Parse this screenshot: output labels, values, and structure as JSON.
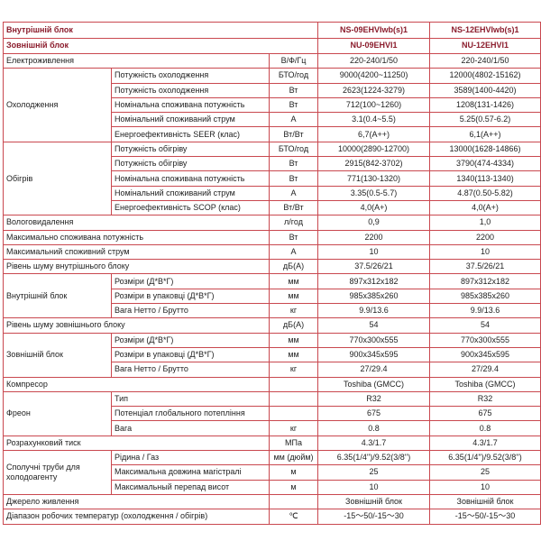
{
  "header": {
    "indoor_label": "Внутрішній блок",
    "outdoor_label": "Зовнішній блок",
    "indoor_models": [
      "NS-09EHVIwb(s)1",
      "NS-12EHVIwb(s)1"
    ],
    "outdoor_models": [
      "NU-09EHVI1",
      "NU-12EHVI1"
    ]
  },
  "colors": {
    "border": "#c9484f",
    "header_text": "#8b1c2c"
  },
  "groups": [
    {
      "label": "Електроживлення",
      "rows": [
        {
          "unit": "В/Ф/Гц",
          "v": [
            "220-240/1/50",
            "220-240/1/50"
          ]
        }
      ]
    },
    {
      "label": "Охолодження",
      "rows": [
        {
          "name": "Потужність охолодження",
          "unit": "БТО/год",
          "v": [
            "9000(4200~11250)",
            "12000(4802-15162)"
          ]
        },
        {
          "name": "Потужність охолодження",
          "unit": "Вт",
          "v": [
            "2623(1224-3279)",
            "3589(1400-4420)"
          ]
        },
        {
          "name": "Номінальна споживана потужність",
          "unit": "Вт",
          "v": [
            "712(100~1260)",
            "1208(131-1426)"
          ]
        },
        {
          "name": "Номінальний споживаний струм",
          "unit": "А",
          "v": [
            "3.1(0.4~5.5)",
            "5.25(0.57-6.2)"
          ]
        },
        {
          "name": "Енергоефективність SEER (клас)",
          "unit": "Вт/Вт",
          "v": [
            "6,7(A++)",
            "6,1(A++)"
          ]
        }
      ]
    },
    {
      "label": "Обігрів",
      "rows": [
        {
          "name": "Потужність обігріву",
          "unit": "БТО/год",
          "v": [
            "10000(2890-12700)",
            "13000(1628-14866)"
          ]
        },
        {
          "name": "Потужність обігріву",
          "unit": "Вт",
          "v": [
            "2915(842-3702)",
            "3790(474-4334)"
          ]
        },
        {
          "name": "Номінальна споживана потужність",
          "unit": "Вт",
          "v": [
            "771(130-1320)",
            "1340(113-1340)"
          ]
        },
        {
          "name": "Номінальний споживаний струм",
          "unit": "А",
          "v": [
            "3.35(0.5-5.7)",
            "4.87(0.50-5.82)"
          ]
        },
        {
          "name": "Енергоефективність SCOP (клас)",
          "unit": "Вт/Вт",
          "v": [
            "4,0(A+)",
            "4,0(A+)"
          ]
        }
      ]
    },
    {
      "label": "Вологовидалення",
      "rows": [
        {
          "unit": "л/год",
          "v": [
            "0,9",
            "1,0"
          ]
        }
      ]
    },
    {
      "label": "Максимально споживана потужність",
      "rows": [
        {
          "unit": "Вт",
          "v": [
            "2200",
            "2200"
          ]
        }
      ]
    },
    {
      "label": "Максимальний споживний струм",
      "rows": [
        {
          "unit": "А",
          "v": [
            "10",
            "10"
          ]
        }
      ]
    },
    {
      "label": "Рівень шуму внутрішнього блоку",
      "rows": [
        {
          "unit": "дБ(А)",
          "v": [
            "37.5/26/21",
            "37.5/26/21"
          ]
        }
      ]
    },
    {
      "label": "Внутрішній блок",
      "rows": [
        {
          "name": "Розміри (Д*В*Г)",
          "unit": "мм",
          "v": [
            "897x312x182",
            "897x312x182"
          ]
        },
        {
          "name": "Розміри в упаковці (Д*В*Г)",
          "unit": "мм",
          "v": [
            "985x385x260",
            "985x385x260"
          ]
        },
        {
          "name": "Вага Нетто / Брутто",
          "unit": "кг",
          "v": [
            "9.9/13.6",
            "9.9/13.6"
          ]
        }
      ]
    },
    {
      "label": "Рівень шуму зовнішнього блоку",
      "rows": [
        {
          "unit": "дБ(А)",
          "v": [
            "54",
            "54"
          ]
        }
      ]
    },
    {
      "label": "Зовнішній блок",
      "rows": [
        {
          "name": "Розміри (Д*В*Г)",
          "unit": "мм",
          "v": [
            "770x300x555",
            "770x300x555"
          ]
        },
        {
          "name": "Розміри в упаковці (Д*В*Г)",
          "unit": "мм",
          "v": [
            "900x345x595",
            "900x345x595"
          ]
        },
        {
          "name": "Вага Нетто / Брутто",
          "unit": "кг",
          "v": [
            "27/29.4",
            "27/29.4"
          ]
        }
      ]
    },
    {
      "label": "Компресор",
      "rows": [
        {
          "unit": "",
          "v": [
            "Toshiba (GMCC)",
            "Toshiba (GMCC)"
          ]
        }
      ]
    },
    {
      "label": "Фреон",
      "rows": [
        {
          "name": "Тип",
          "unit": "",
          "v": [
            "R32",
            "R32"
          ]
        },
        {
          "name": "Потенціал глобального потепління",
          "unit": "",
          "v": [
            "675",
            "675"
          ]
        },
        {
          "name": "Вага",
          "unit": "кг",
          "v": [
            "0.8",
            "0.8"
          ]
        }
      ]
    },
    {
      "label": "Розрахунковий тиск",
      "rows": [
        {
          "unit": "МПа",
          "v": [
            "4.3/1.7",
            "4.3/1.7"
          ]
        }
      ]
    },
    {
      "label": "Сполучні труби для холодоагенту",
      "rows": [
        {
          "name": "Рідина / Газ",
          "unit": "мм (дюйм)",
          "v": [
            "6.35(1/4'')/9.52(3/8'')",
            "6.35(1/4'')/9.52(3/8'')"
          ]
        },
        {
          "name": "Максимальна довжина магістралі",
          "unit": "м",
          "v": [
            "25",
            "25"
          ]
        },
        {
          "name": "Максимальный перепад висот",
          "unit": "м",
          "v": [
            "10",
            "10"
          ]
        }
      ]
    },
    {
      "label": "Джерело живлення",
      "rows": [
        {
          "unit": "",
          "v": [
            "Зовнішній блок",
            "Зовнішній блок"
          ]
        }
      ]
    },
    {
      "label": "Діапазон робочих температур (охолодження / обігрів)",
      "rows": [
        {
          "unit": "℃",
          "v": [
            "-15～50/-15～30",
            "-15～50/-15～30"
          ]
        }
      ]
    }
  ]
}
